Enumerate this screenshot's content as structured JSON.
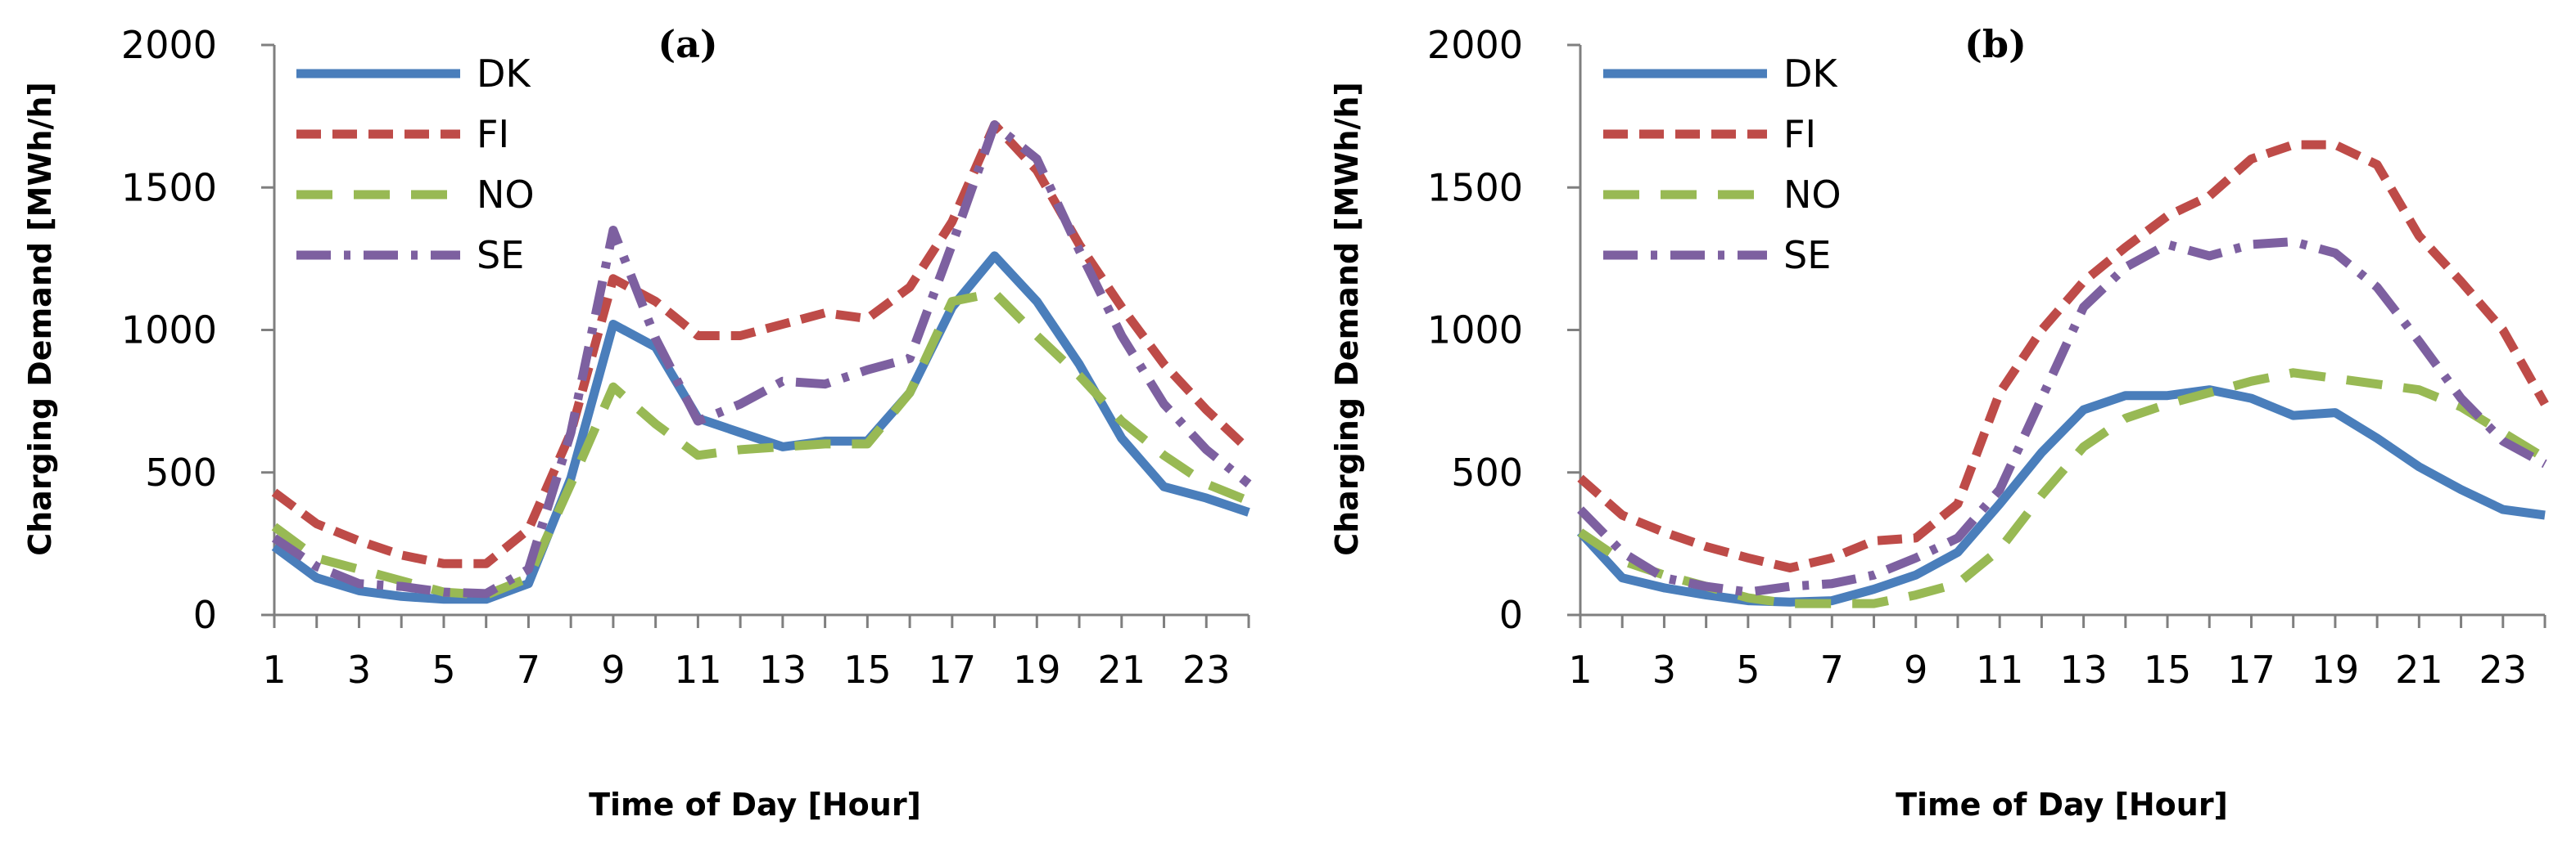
{
  "chart_data": [
    {
      "type": "line",
      "title": "(a)",
      "xlabel": "Time of Day [Hour]",
      "ylabel": "Charging Demand [MWh/h]",
      "xlim": [
        1,
        24
      ],
      "ylim": [
        0,
        2000
      ],
      "yticks": [
        0,
        500,
        1000,
        1500,
        2000
      ],
      "xtick_labels": [
        "1",
        "3",
        "5",
        "7",
        "9",
        "11",
        "13",
        "15",
        "17",
        "19",
        "21",
        "23"
      ],
      "x": [
        1,
        2,
        3,
        4,
        5,
        6,
        7,
        8,
        9,
        10,
        11,
        12,
        13,
        14,
        15,
        16,
        17,
        18,
        19,
        20,
        21,
        22,
        23,
        24
      ],
      "legend_position": "top-left",
      "series": [
        {
          "name": "DK",
          "color": "#4a7ebb",
          "dash": "solid",
          "values": [
            240,
            130,
            85,
            65,
            55,
            55,
            110,
            480,
            1020,
            940,
            690,
            640,
            590,
            610,
            610,
            780,
            1080,
            1260,
            1100,
            880,
            620,
            450,
            410,
            360
          ]
        },
        {
          "name": "FI",
          "color": "#be4b48",
          "dash": "dash",
          "values": [
            430,
            320,
            260,
            210,
            180,
            180,
            300,
            640,
            1180,
            1100,
            980,
            980,
            1020,
            1060,
            1040,
            1150,
            1380,
            1720,
            1560,
            1300,
            1080,
            880,
            720,
            580
          ]
        },
        {
          "name": "NO",
          "color": "#98b954",
          "dash": "longdash",
          "values": [
            310,
            200,
            160,
            120,
            80,
            70,
            130,
            460,
            800,
            670,
            560,
            580,
            590,
            600,
            600,
            780,
            1100,
            1130,
            980,
            840,
            680,
            560,
            460,
            400
          ]
        },
        {
          "name": "SE",
          "color": "#7d60a0",
          "dash": "dashdot",
          "values": [
            270,
            170,
            110,
            100,
            80,
            75,
            160,
            640,
            1350,
            970,
            680,
            740,
            820,
            810,
            860,
            900,
            1300,
            1720,
            1600,
            1280,
            980,
            740,
            580,
            460
          ]
        }
      ]
    },
    {
      "type": "line",
      "title": "(b)",
      "xlabel": "Time of Day [Hour]",
      "ylabel": "Charging Demand [MWh/h]",
      "xlim": [
        1,
        24
      ],
      "ylim": [
        0,
        2000
      ],
      "yticks": [
        0,
        500,
        1000,
        1500,
        2000
      ],
      "xtick_labels": [
        "1",
        "3",
        "5",
        "7",
        "9",
        "11",
        "13",
        "15",
        "17",
        "19",
        "21",
        "23"
      ],
      "x": [
        1,
        2,
        3,
        4,
        5,
        6,
        7,
        8,
        9,
        10,
        11,
        12,
        13,
        14,
        15,
        16,
        17,
        18,
        19,
        20,
        21,
        22,
        23,
        24
      ],
      "legend_position": "top-left",
      "series": [
        {
          "name": "DK",
          "color": "#4a7ebb",
          "dash": "solid",
          "values": [
            290,
            130,
            95,
            70,
            50,
            45,
            50,
            90,
            140,
            220,
            390,
            570,
            720,
            770,
            770,
            790,
            760,
            700,
            710,
            620,
            520,
            440,
            370,
            350
          ]
        },
        {
          "name": "FI",
          "color": "#be4b48",
          "dash": "dash",
          "values": [
            480,
            350,
            290,
            240,
            200,
            165,
            200,
            260,
            270,
            390,
            780,
            1000,
            1170,
            1290,
            1400,
            1470,
            1600,
            1650,
            1650,
            1580,
            1330,
            1170,
            1000,
            740
          ]
        },
        {
          "name": "NO",
          "color": "#98b954",
          "dash": "longdash",
          "values": [
            290,
            190,
            140,
            100,
            60,
            40,
            40,
            40,
            70,
            110,
            230,
            420,
            590,
            690,
            740,
            780,
            820,
            850,
            830,
            810,
            790,
            730,
            640,
            550
          ]
        },
        {
          "name": "SE",
          "color": "#7d60a0",
          "dash": "dashdot",
          "values": [
            370,
            220,
            130,
            100,
            80,
            100,
            110,
            140,
            200,
            270,
            440,
            760,
            1080,
            1220,
            1300,
            1260,
            1300,
            1310,
            1270,
            1150,
            960,
            760,
            610,
            530
          ]
        }
      ]
    }
  ]
}
